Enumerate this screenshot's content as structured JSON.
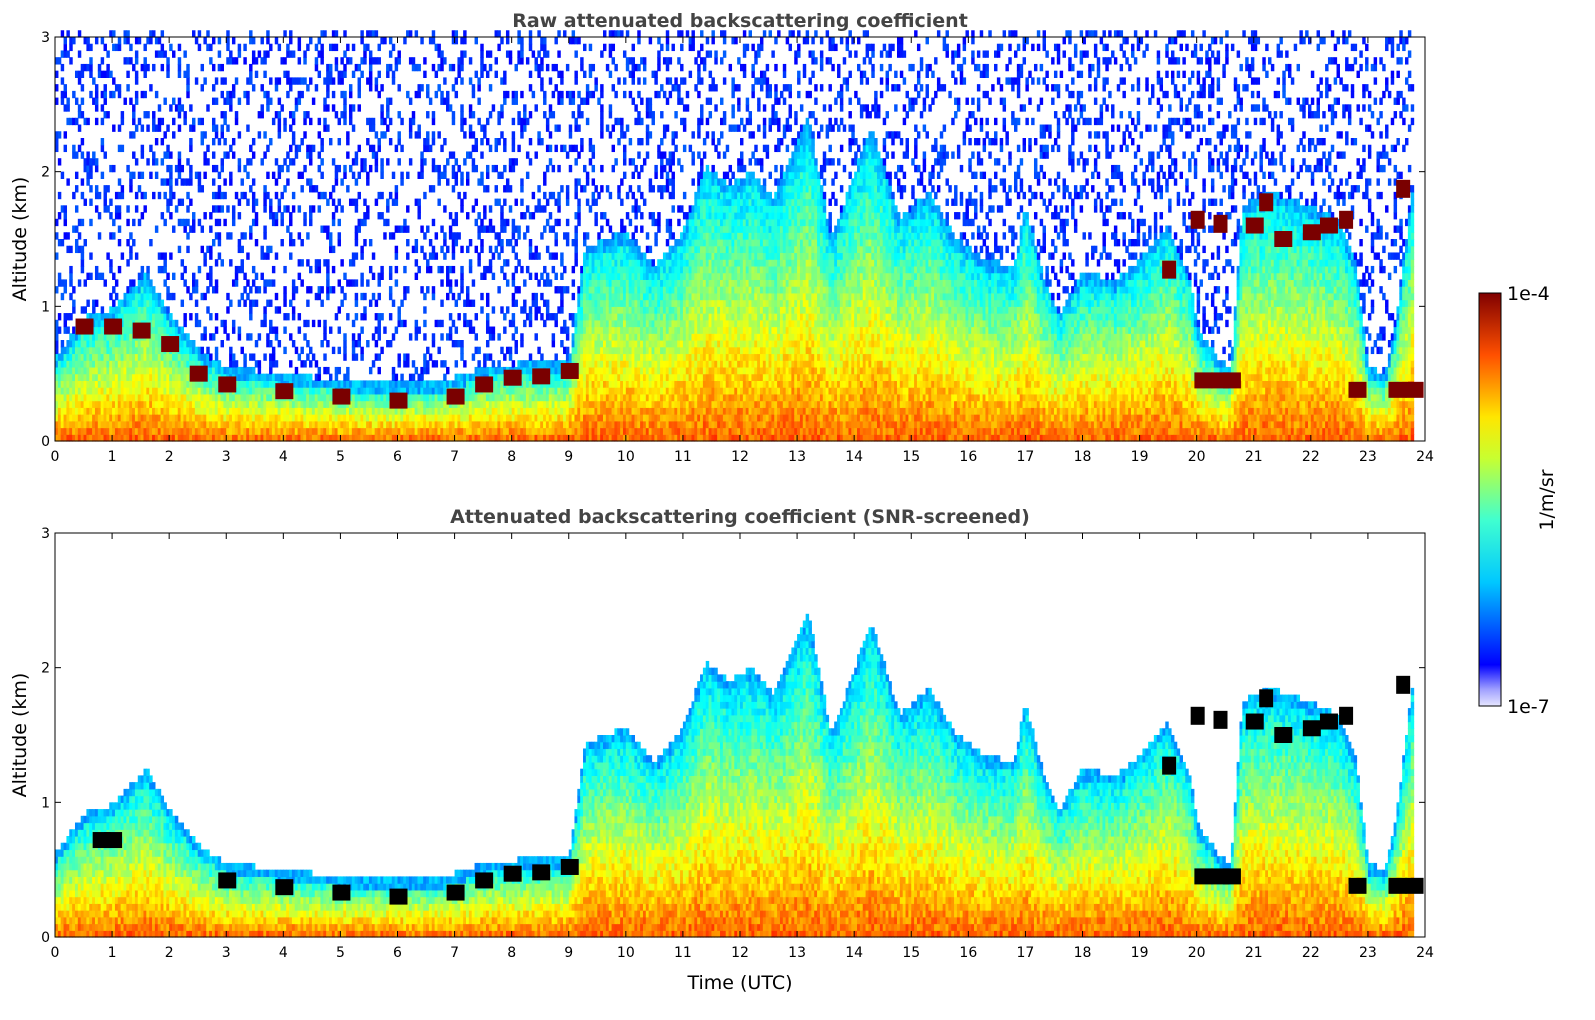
{
  "chart_data": [
    {
      "type": "heatmap",
      "title": "Raw attenuated backscattering coefficient",
      "xlabel": "",
      "ylabel": "Altitude (km)",
      "xlim": [
        0,
        24
      ],
      "ylim": [
        0,
        3
      ],
      "xticks": [
        "0",
        "1",
        "2",
        "3",
        "4",
        "5",
        "6",
        "7",
        "8",
        "9",
        "10",
        "11",
        "12",
        "13",
        "14",
        "15",
        "16",
        "17",
        "18",
        "19",
        "20",
        "21",
        "22",
        "23",
        "24"
      ],
      "yticks": [
        "0",
        "1",
        "2",
        "3"
      ],
      "colormap": "jet",
      "color_scale": "log",
      "noise_screened": false,
      "grid": false,
      "cloud_top_km": [
        [
          0,
          0.62
        ],
        [
          0.5,
          0.92
        ],
        [
          1.0,
          0.98
        ],
        [
          1.6,
          1.25
        ],
        [
          2.0,
          0.95
        ],
        [
          2.6,
          0.65
        ],
        [
          3.0,
          0.55
        ],
        [
          4.0,
          0.5
        ],
        [
          5.0,
          0.45
        ],
        [
          6.0,
          0.44
        ],
        [
          6.8,
          0.45
        ],
        [
          7.5,
          0.55
        ],
        [
          8.2,
          0.58
        ],
        [
          9.0,
          0.58
        ],
        [
          9.3,
          1.45
        ],
        [
          10.0,
          1.55
        ],
        [
          10.5,
          1.3
        ],
        [
          11.0,
          1.55
        ],
        [
          11.4,
          2.05
        ],
        [
          11.8,
          1.9
        ],
        [
          12.2,
          2.0
        ],
        [
          12.6,
          1.8
        ],
        [
          13.2,
          2.4
        ],
        [
          13.6,
          1.5
        ],
        [
          14.3,
          2.35
        ],
        [
          14.8,
          1.65
        ],
        [
          15.3,
          1.85
        ],
        [
          15.8,
          1.5
        ],
        [
          16.3,
          1.35
        ],
        [
          16.8,
          1.3
        ],
        [
          17.0,
          1.75
        ],
        [
          17.3,
          1.25
        ],
        [
          17.6,
          0.95
        ],
        [
          18.0,
          1.25
        ],
        [
          18.6,
          1.2
        ],
        [
          19.0,
          1.35
        ],
        [
          19.5,
          1.6
        ],
        [
          19.9,
          1.2
        ],
        [
          20.0,
          0.85
        ],
        [
          20.4,
          0.6
        ],
        [
          20.6,
          0.55
        ],
        [
          20.8,
          1.75
        ],
        [
          21.3,
          1.85
        ],
        [
          22.0,
          1.75
        ],
        [
          22.5,
          1.65
        ],
        [
          22.8,
          1.3
        ],
        [
          23.0,
          0.55
        ],
        [
          23.3,
          0.5
        ],
        [
          23.5,
          0.9
        ],
        [
          23.8,
          1.95
        ]
      ],
      "max_echo_layer_km": [
        [
          0.5,
          0.85
        ],
        [
          1.0,
          0.85
        ],
        [
          1.5,
          0.82
        ],
        [
          2.0,
          0.72
        ],
        [
          2.5,
          0.5
        ],
        [
          3.0,
          0.42
        ],
        [
          4.0,
          0.37
        ],
        [
          5.0,
          0.33
        ],
        [
          6.0,
          0.3
        ],
        [
          7.0,
          0.33
        ],
        [
          7.5,
          0.42
        ],
        [
          8.0,
          0.47
        ],
        [
          8.5,
          0.48
        ],
        [
          9.0,
          0.52
        ],
        [
          20.1,
          0.45
        ],
        [
          20.4,
          0.45
        ],
        [
          20.6,
          0.45
        ],
        [
          21.0,
          1.6
        ],
        [
          21.5,
          1.5
        ],
        [
          22.0,
          1.55
        ],
        [
          22.3,
          1.6
        ],
        [
          22.8,
          0.38
        ],
        [
          23.5,
          0.38
        ],
        [
          23.8,
          0.38
        ]
      ],
      "elevated_layer_km": [
        [
          20.0,
          1.65
        ],
        [
          20.4,
          1.62
        ],
        [
          21.2,
          1.78
        ],
        [
          22.6,
          1.65
        ],
        [
          23.6,
          1.88
        ],
        [
          19.5,
          1.28
        ]
      ]
    },
    {
      "type": "heatmap",
      "title": "Attenuated backscattering coefficient (SNR-screened)",
      "xlabel": "Time (UTC)",
      "ylabel": "Altitude (km)",
      "xlim": [
        0,
        24
      ],
      "ylim": [
        0,
        3
      ],
      "xticks": [
        "0",
        "1",
        "2",
        "3",
        "4",
        "5",
        "6",
        "7",
        "8",
        "9",
        "10",
        "11",
        "12",
        "13",
        "14",
        "15",
        "16",
        "17",
        "18",
        "19",
        "20",
        "21",
        "22",
        "23",
        "24"
      ],
      "yticks": [
        "0",
        "1",
        "2",
        "3"
      ],
      "colormap": "jet",
      "color_scale": "log",
      "noise_screened": true,
      "grid": false,
      "masked_max_layer": "black",
      "cloud_top_km": [
        [
          0,
          0.62
        ],
        [
          0.5,
          0.92
        ],
        [
          1.0,
          0.98
        ],
        [
          1.6,
          1.25
        ],
        [
          2.0,
          0.95
        ],
        [
          2.6,
          0.65
        ],
        [
          3.0,
          0.55
        ],
        [
          4.0,
          0.5
        ],
        [
          5.0,
          0.45
        ],
        [
          6.0,
          0.44
        ],
        [
          6.8,
          0.45
        ],
        [
          7.5,
          0.55
        ],
        [
          8.2,
          0.58
        ],
        [
          9.0,
          0.58
        ],
        [
          9.3,
          1.45
        ],
        [
          10.0,
          1.55
        ],
        [
          10.5,
          1.3
        ],
        [
          11.0,
          1.55
        ],
        [
          11.4,
          2.05
        ],
        [
          11.8,
          1.9
        ],
        [
          12.2,
          2.0
        ],
        [
          12.6,
          1.8
        ],
        [
          13.2,
          2.4
        ],
        [
          13.6,
          1.5
        ],
        [
          14.3,
          2.35
        ],
        [
          14.8,
          1.65
        ],
        [
          15.3,
          1.85
        ],
        [
          15.8,
          1.5
        ],
        [
          16.3,
          1.35
        ],
        [
          16.8,
          1.3
        ],
        [
          17.0,
          1.75
        ],
        [
          17.3,
          1.25
        ],
        [
          17.6,
          0.95
        ],
        [
          18.0,
          1.25
        ],
        [
          18.6,
          1.2
        ],
        [
          19.0,
          1.35
        ],
        [
          19.5,
          1.6
        ],
        [
          19.9,
          1.2
        ],
        [
          20.0,
          0.85
        ],
        [
          20.4,
          0.6
        ],
        [
          20.6,
          0.55
        ],
        [
          20.8,
          1.75
        ],
        [
          21.3,
          1.85
        ],
        [
          22.0,
          1.75
        ],
        [
          22.5,
          1.65
        ],
        [
          22.8,
          1.3
        ],
        [
          23.0,
          0.55
        ],
        [
          23.3,
          0.5
        ],
        [
          23.5,
          0.9
        ],
        [
          23.8,
          1.95
        ]
      ],
      "max_echo_layer_km": [
        [
          0.8,
          0.72
        ],
        [
          1.0,
          0.72
        ],
        [
          3.0,
          0.42
        ],
        [
          4.0,
          0.37
        ],
        [
          5.0,
          0.33
        ],
        [
          6.0,
          0.3
        ],
        [
          7.0,
          0.33
        ],
        [
          7.5,
          0.42
        ],
        [
          8.0,
          0.47
        ],
        [
          8.5,
          0.48
        ],
        [
          9.0,
          0.52
        ],
        [
          20.1,
          0.45
        ],
        [
          20.4,
          0.45
        ],
        [
          20.6,
          0.45
        ],
        [
          21.0,
          1.6
        ],
        [
          21.5,
          1.5
        ],
        [
          22.0,
          1.55
        ],
        [
          22.3,
          1.6
        ],
        [
          22.8,
          0.38
        ],
        [
          23.5,
          0.38
        ],
        [
          23.8,
          0.38
        ]
      ],
      "elevated_layer_km": [
        [
          20.0,
          1.65
        ],
        [
          20.4,
          1.62
        ],
        [
          21.2,
          1.78
        ],
        [
          22.6,
          1.65
        ],
        [
          23.6,
          1.88
        ],
        [
          19.5,
          1.28
        ]
      ]
    }
  ],
  "colorbar": {
    "label": "1/m/sr",
    "max_label": "1e-4",
    "min_label": "1e-7",
    "vmin": 1e-07,
    "vmax": 0.0001
  }
}
